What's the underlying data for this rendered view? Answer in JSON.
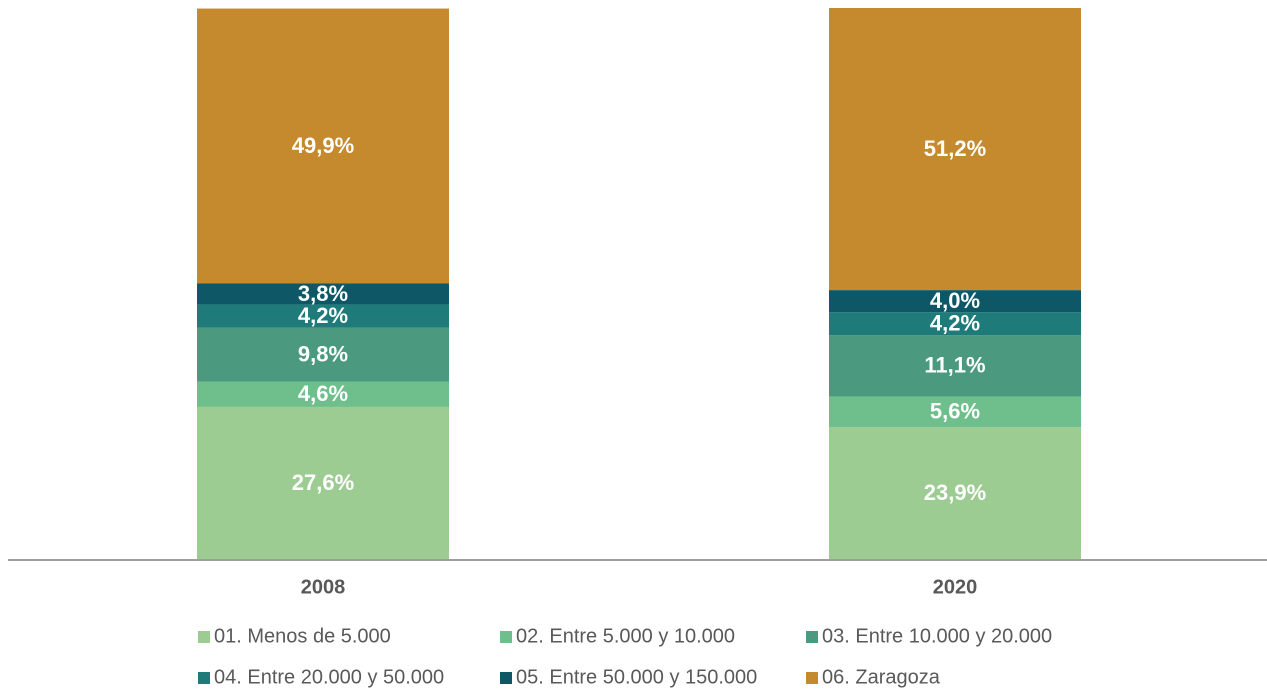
{
  "chart_data": {
    "type": "stacked_bar",
    "categories": [
      "2008",
      "2020"
    ],
    "ylim": [
      0,
      100
    ],
    "series": [
      {
        "name": "01. Menos de 5.000",
        "color": "#9dcc93",
        "values": [
          27.6,
          23.9
        ],
        "value_labels": [
          "27,6%",
          "23,9%"
        ]
      },
      {
        "name": "02. Entre 5.000 y 10.000",
        "color": "#6ebf8b",
        "values": [
          4.6,
          5.6
        ],
        "value_labels": [
          "4,6%",
          "5,6%"
        ]
      },
      {
        "name": "03. Entre 10.000 y 20.000",
        "color": "#4b9a80",
        "values": [
          9.8,
          11.1
        ],
        "value_labels": [
          "9,8%",
          "11,1%"
        ]
      },
      {
        "name": "04. Entre 20.000 y 50.000",
        "color": "#1f7b7a",
        "values": [
          4.2,
          4.2
        ],
        "value_labels": [
          "4,2%",
          "4,2%"
        ]
      },
      {
        "name": "05. Entre 50.000 y 150.000",
        "color": "#0d5766",
        "values": [
          3.8,
          4.0
        ],
        "value_labels": [
          "3,8%",
          "4,0%"
        ]
      },
      {
        "name": "06. Zaragoza",
        "color": "#c5892e",
        "values": [
          49.9,
          51.2
        ],
        "value_labels": [
          "49,9%",
          "51,2%"
        ]
      }
    ]
  }
}
